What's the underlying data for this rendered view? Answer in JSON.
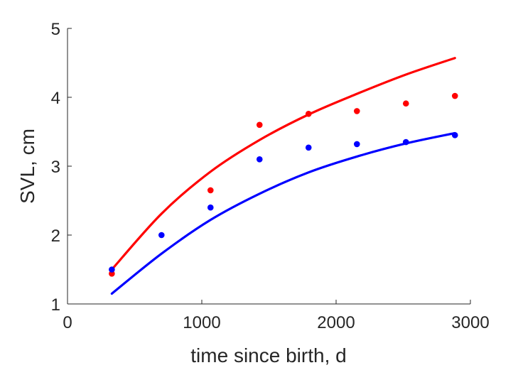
{
  "chart_data": {
    "type": "scatter",
    "title": "",
    "xlabel": "time since birth, d",
    "ylabel": "SVL, cm",
    "xlim": [
      0,
      3000
    ],
    "ylim": [
      1,
      5
    ],
    "xticks": [
      0,
      1000,
      2000,
      3000
    ],
    "yticks": [
      1,
      2,
      3,
      4,
      5
    ],
    "grid": false,
    "legend": "none",
    "series": [
      {
        "color": "#ff0000",
        "kind": "points",
        "x": [
          330,
          1065,
          1430,
          1795,
          2155,
          2520,
          2885
        ],
        "y": [
          1.44,
          2.65,
          3.6,
          3.76,
          3.8,
          3.91,
          4.02
        ]
      },
      {
        "color": "#0000ff",
        "kind": "points",
        "x": [
          330,
          700,
          1065,
          1430,
          1795,
          2155,
          2520,
          2885
        ],
        "y": [
          1.5,
          2.0,
          2.4,
          3.1,
          3.27,
          3.32,
          3.35,
          3.45
        ]
      },
      {
        "color": "#ff0000",
        "kind": "line",
        "x": [
          330,
          700,
          1065,
          1430,
          1795,
          2155,
          2520,
          2885
        ],
        "y": [
          1.5,
          2.31,
          2.92,
          3.38,
          3.75,
          4.05,
          4.33,
          4.57
        ]
      },
      {
        "color": "#0000ff",
        "kind": "line",
        "x": [
          330,
          700,
          1065,
          1430,
          1795,
          2155,
          2520,
          2885
        ],
        "y": [
          1.15,
          1.73,
          2.22,
          2.6,
          2.91,
          3.14,
          3.33,
          3.48
        ]
      }
    ]
  }
}
